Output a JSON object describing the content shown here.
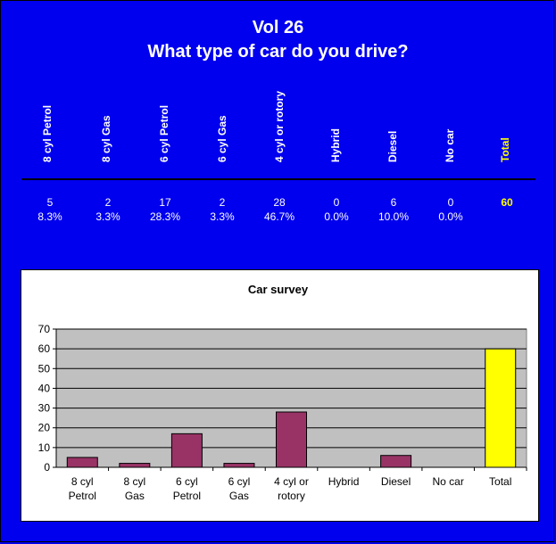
{
  "header": {
    "title": "Vol 26",
    "subtitle": "What type of car do you drive?"
  },
  "table": {
    "columns": [
      {
        "label": "8 cyl Petrol",
        "count": "5",
        "percent": "8.3%"
      },
      {
        "label": "8 cyl Gas",
        "count": "2",
        "percent": "3.3%"
      },
      {
        "label": "6 cyl Petrol",
        "count": "17",
        "percent": "28.3%"
      },
      {
        "label": "6 cyl Gas",
        "count": "2",
        "percent": "3.3%"
      },
      {
        "label": "4 cyl or rotory",
        "count": "28",
        "percent": "46.7%"
      },
      {
        "label": "Hybrid",
        "count": "0",
        "percent": "0.0%"
      },
      {
        "label": "Diesel",
        "count": "6",
        "percent": "10.0%"
      },
      {
        "label": "No car",
        "count": "0",
        "percent": "0.0%"
      }
    ],
    "total": {
      "label": "Total",
      "count": "60"
    },
    "colors": {
      "text": "#ffffff",
      "total": "#ffff00",
      "background": "#0000ee"
    }
  },
  "chart_data": {
    "type": "bar",
    "title": "Car survey",
    "categories": [
      [
        "8 cyl",
        "Petrol"
      ],
      [
        "8 cyl",
        "Gas"
      ],
      [
        "6 cyl",
        "Petrol"
      ],
      [
        "6 cyl",
        "Gas"
      ],
      [
        "4 cyl or",
        "rotory"
      ],
      [
        "Hybrid"
      ],
      [
        "Diesel"
      ],
      [
        "No car"
      ],
      [
        "Total"
      ]
    ],
    "values": [
      5,
      2,
      17,
      2,
      28,
      0,
      6,
      0,
      60
    ],
    "ylim": [
      0,
      70
    ],
    "yticks": [
      0,
      10,
      20,
      30,
      40,
      50,
      60,
      70
    ],
    "grid": true,
    "legend": "none",
    "colors": {
      "bar": "#993366",
      "total_bar": "#ffff00",
      "plot_bg": "#c0c0c0"
    }
  }
}
